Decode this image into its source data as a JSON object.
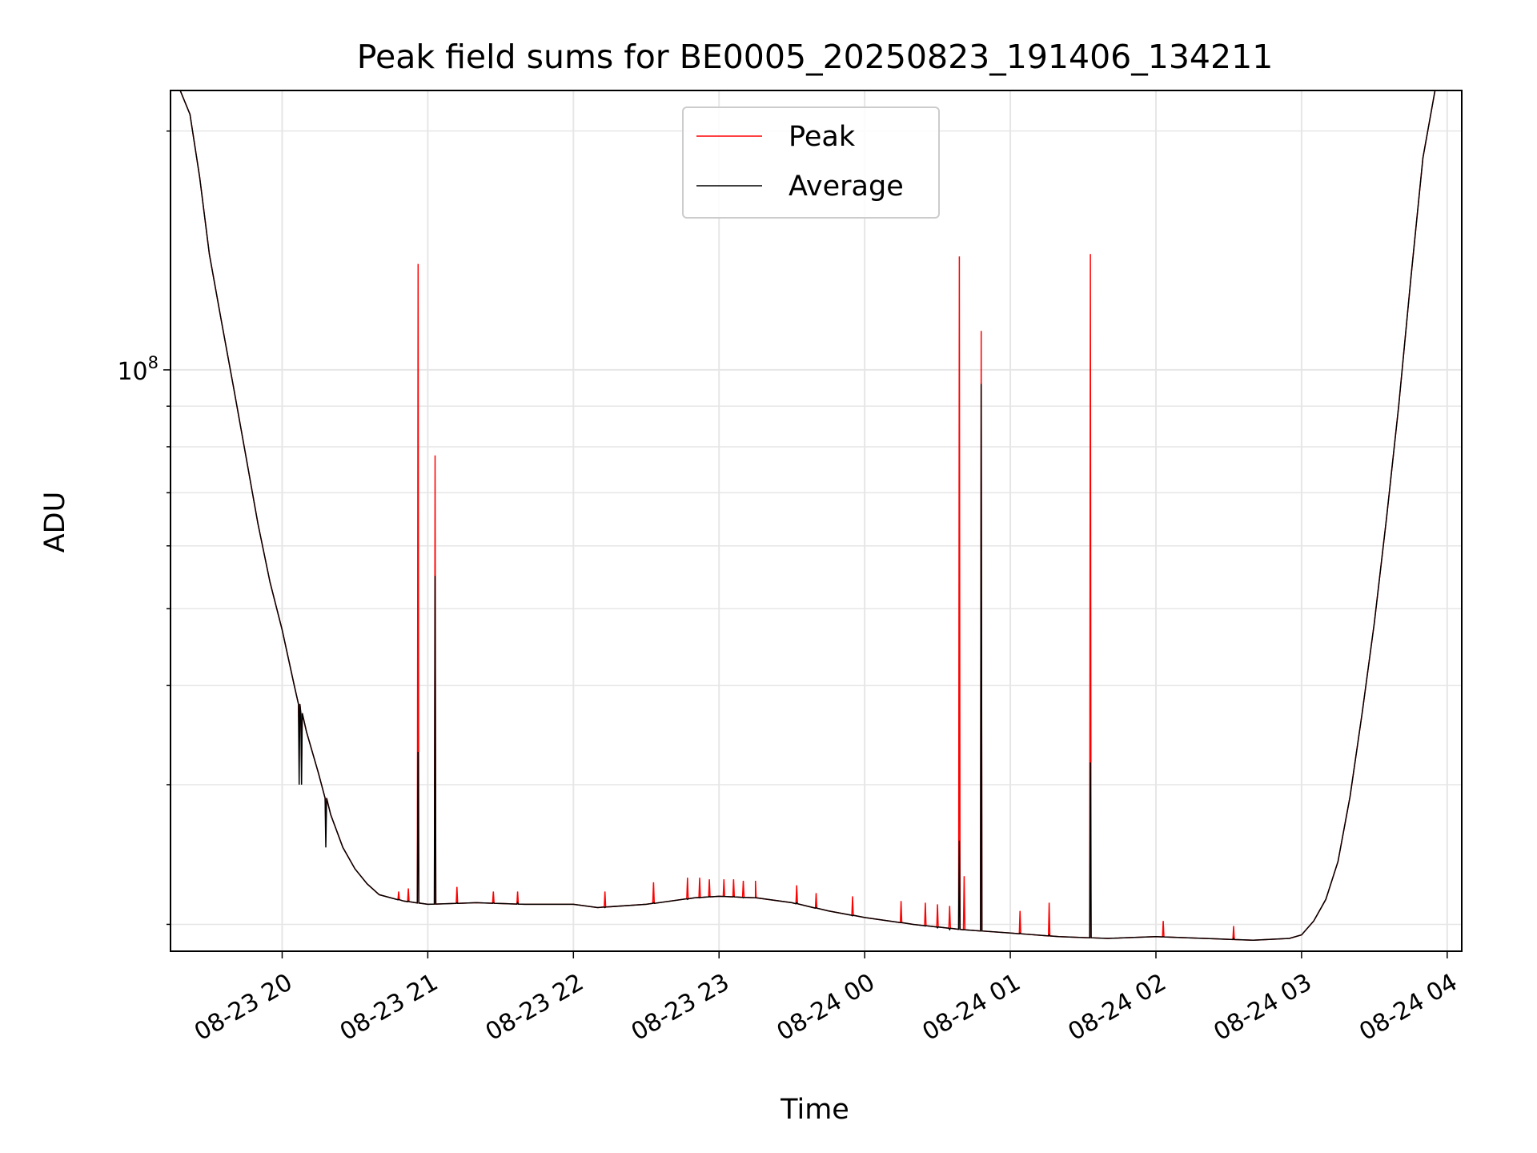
{
  "chart_data": {
    "type": "line",
    "title": "Peak field sums for BE0005_20250823_191406_134211",
    "xlabel": "Time",
    "ylabel": "ADU",
    "y_scale": "log",
    "ylim": [
      18500000,
      225000000
    ],
    "xlim": [
      "2025-08-23 19:14",
      "2025-08-24 04:06"
    ],
    "x_ticks": [
      "08-23 20",
      "08-23 21",
      "08-23 22",
      "08-23 23",
      "08-24 00",
      "08-24 01",
      "08-24 02",
      "08-24 03",
      "08-24 04"
    ],
    "y_tick_labels": [
      {
        "value": 100000000,
        "base": "10",
        "exp": "8"
      }
    ],
    "grid": true,
    "legend": {
      "placement": "top-center",
      "entries": [
        "Peak",
        "Average"
      ]
    },
    "colors": {
      "peak": "#ff0000",
      "average": "#000000"
    },
    "series": [
      {
        "name": "Average",
        "color": "#000000",
        "points": [
          [
            "2025-08-23 19:14",
            225000000
          ],
          [
            "2025-08-23 19:18",
            225000000
          ],
          [
            "2025-08-23 19:22",
            210000000
          ],
          [
            "2025-08-23 19:26",
            175000000
          ],
          [
            "2025-08-23 19:30",
            140000000
          ],
          [
            "2025-08-23 19:35",
            115000000
          ],
          [
            "2025-08-23 19:40",
            95000000
          ],
          [
            "2025-08-23 19:45",
            78000000
          ],
          [
            "2025-08-23 19:50",
            64000000
          ],
          [
            "2025-08-23 19:55",
            54000000
          ],
          [
            "2025-08-23 20:00",
            47000000
          ],
          [
            "2025-08-23 20:05",
            40000000
          ],
          [
            "2025-08-23 20:10",
            35000000
          ],
          [
            "2025-08-23 20:15",
            31000000
          ],
          [
            "2025-08-23 20:20",
            27500000
          ],
          [
            "2025-08-23 20:25",
            25000000
          ],
          [
            "2025-08-23 20:30",
            23500000
          ],
          [
            "2025-08-23 20:35",
            22500000
          ],
          [
            "2025-08-23 20:40",
            21800000
          ],
          [
            "2025-08-23 20:50",
            21400000
          ],
          [
            "2025-08-23 21:00",
            21200000
          ],
          [
            "2025-08-23 21:20",
            21300000
          ],
          [
            "2025-08-23 21:40",
            21200000
          ],
          [
            "2025-08-23 22:00",
            21200000
          ],
          [
            "2025-08-23 22:10",
            21000000
          ],
          [
            "2025-08-23 22:30",
            21200000
          ],
          [
            "2025-08-23 22:50",
            21600000
          ],
          [
            "2025-08-23 23:00",
            21700000
          ],
          [
            "2025-08-23 23:15",
            21600000
          ],
          [
            "2025-08-23 23:30",
            21300000
          ],
          [
            "2025-08-23 23:45",
            20800000
          ],
          [
            "2025-08-24 00:00",
            20400000
          ],
          [
            "2025-08-24 00:20",
            20000000
          ],
          [
            "2025-08-24 00:40",
            19700000
          ],
          [
            "2025-08-24 01:00",
            19500000
          ],
          [
            "2025-08-24 01:20",
            19300000
          ],
          [
            "2025-08-24 01:40",
            19200000
          ],
          [
            "2025-08-24 02:00",
            19300000
          ],
          [
            "2025-08-24 02:20",
            19200000
          ],
          [
            "2025-08-24 02:40",
            19100000
          ],
          [
            "2025-08-24 02:55",
            19200000
          ],
          [
            "2025-08-24 03:00",
            19400000
          ],
          [
            "2025-08-24 03:05",
            20200000
          ],
          [
            "2025-08-24 03:10",
            21500000
          ],
          [
            "2025-08-24 03:15",
            24000000
          ],
          [
            "2025-08-24 03:20",
            29000000
          ],
          [
            "2025-08-24 03:25",
            37000000
          ],
          [
            "2025-08-24 03:30",
            48000000
          ],
          [
            "2025-08-24 03:35",
            65000000
          ],
          [
            "2025-08-24 03:40",
            90000000
          ],
          [
            "2025-08-24 03:45",
            130000000
          ],
          [
            "2025-08-24 03:50",
            185000000
          ],
          [
            "2025-08-24 03:55",
            225000000
          ],
          [
            "2025-08-24 04:06",
            225000000
          ]
        ]
      },
      {
        "name": "Peak",
        "color": "#ff0000",
        "spikes": [
          [
            "2025-08-23 20:56",
            136000000,
            33000000
          ],
          [
            "2025-08-23 21:03",
            78000000,
            55000000
          ],
          [
            "2025-08-24 00:39",
            139000000,
            25500000
          ],
          [
            "2025-08-24 00:48",
            112000000,
            96000000
          ],
          [
            "2025-08-24 01:33",
            140000000,
            32000000
          ],
          [
            "2025-08-23 20:07",
            33500000,
            30000000
          ],
          [
            "2025-08-23 20:08",
            32000000,
            30000000
          ],
          [
            "2025-08-23 20:18",
            26500000,
            25000000
          ],
          [
            "2025-08-23 20:48",
            22000000,
            21500000
          ],
          [
            "2025-08-23 20:52",
            22200000,
            21400000
          ],
          [
            "2025-08-23 21:12",
            22300000,
            21300000
          ],
          [
            "2025-08-23 21:27",
            22000000,
            21300000
          ],
          [
            "2025-08-23 21:37",
            22000000,
            21300000
          ],
          [
            "2025-08-23 22:13",
            22000000,
            21000000
          ],
          [
            "2025-08-23 22:33",
            22600000,
            21300000
          ],
          [
            "2025-08-23 22:47",
            22900000,
            21500000
          ],
          [
            "2025-08-23 22:52",
            22900000,
            21600000
          ],
          [
            "2025-08-23 22:56",
            22800000,
            21700000
          ],
          [
            "2025-08-23 23:02",
            22800000,
            21700000
          ],
          [
            "2025-08-23 23:06",
            22800000,
            21700000
          ],
          [
            "2025-08-23 23:10",
            22700000,
            21600000
          ],
          [
            "2025-08-23 23:15",
            22700000,
            21600000
          ],
          [
            "2025-08-23 23:32",
            22400000,
            21300000
          ],
          [
            "2025-08-23 23:40",
            21900000,
            21000000
          ],
          [
            "2025-08-23 23:55",
            21700000,
            20500000
          ],
          [
            "2025-08-24 00:15",
            21400000,
            20100000
          ],
          [
            "2025-08-24 00:25",
            21300000,
            19900000
          ],
          [
            "2025-08-24 00:30",
            21200000,
            19800000
          ],
          [
            "2025-08-24 00:35",
            21100000,
            19700000
          ],
          [
            "2025-08-24 00:41",
            23000000,
            19700000
          ],
          [
            "2025-08-24 01:04",
            20800000,
            19500000
          ],
          [
            "2025-08-24 01:16",
            21300000,
            19400000
          ],
          [
            "2025-08-24 02:03",
            20200000,
            19300000
          ],
          [
            "2025-08-24 02:32",
            19900000,
            19200000
          ]
        ]
      }
    ]
  }
}
